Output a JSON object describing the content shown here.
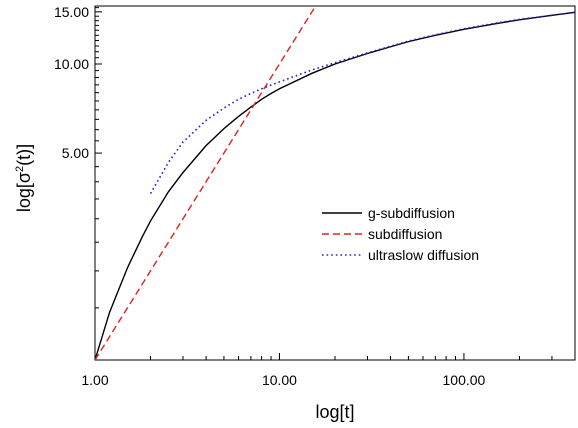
{
  "chart_data": {
    "type": "line",
    "title": "",
    "xlabel": "log[t]",
    "ylabel": {
      "prefix": "log[",
      "symbol": "σ",
      "superscript": "2",
      "suffix": "(t)]"
    },
    "x_scale": "log",
    "y_scale": "log",
    "xlim": [
      1.0,
      400.0
    ],
    "ylim": [
      1.0,
      15.7
    ],
    "x_major_ticks": [
      {
        "value": 1,
        "label": "1.00"
      },
      {
        "value": 10,
        "label": "10.00"
      },
      {
        "value": 100,
        "label": "100.00"
      }
    ],
    "y_major_ticks": [
      {
        "value": 5,
        "label": "5.00"
      },
      {
        "value": 10,
        "label": "10.00"
      },
      {
        "value": 15,
        "label": "15.00"
      }
    ],
    "y_minor_ticks": [
      1.5,
      2,
      2.5,
      3,
      3.5,
      4,
      4.5,
      5.5,
      6,
      6.5,
      7,
      7.5,
      8,
      8.5,
      9,
      9.5,
      10.5,
      11,
      11.5,
      12,
      12.5,
      13,
      13.5,
      14,
      14.5,
      15.5
    ],
    "x_minor_ticks": [
      2,
      3,
      4,
      5,
      6,
      7,
      8,
      9,
      20,
      30,
      40,
      50,
      60,
      70,
      80,
      90,
      200,
      300,
      400
    ],
    "grid": false,
    "legend_position": "center-right",
    "series": [
      {
        "name": "g-subdiffusion",
        "color": "#000000",
        "dash": "solid",
        "x": [
          1.0,
          1.2,
          1.5,
          1.8,
          2.0,
          2.5,
          3.0,
          4.0,
          5.0,
          6.0,
          7.0,
          8.0,
          9.0,
          10.0,
          15.0,
          20.0,
          30.0,
          50.0,
          70.0,
          100.0,
          150.0,
          200.0,
          300.0,
          400.0
        ],
        "y": [
          1.0,
          1.45,
          2.05,
          2.6,
          2.95,
          3.7,
          4.3,
          5.3,
          6.05,
          6.65,
          7.15,
          7.6,
          7.95,
          8.25,
          9.3,
          10.0,
          10.85,
          11.9,
          12.5,
          13.1,
          13.7,
          14.1,
          14.6,
          14.95
        ]
      },
      {
        "name": "subdiffusion",
        "color": "#e02020",
        "dash": "dashed",
        "x": [
          1.0,
          2.0,
          4.0,
          8.0,
          16.0,
          25.0
        ],
        "y": [
          1.0,
          2.0,
          4.0,
          8.0,
          16.0,
          25.0
        ]
      },
      {
        "name": "ultraslow diffusion",
        "color": "#2020d0",
        "dash": "dotted",
        "x": [
          2.0,
          2.5,
          3.0,
          4.0,
          5.0,
          6.0,
          7.0,
          8.0,
          10.0,
          15.0,
          20.0,
          30.0,
          50.0,
          70.0,
          100.0,
          150.0,
          200.0,
          300.0,
          400.0
        ],
        "y": [
          3.65,
          4.65,
          5.45,
          6.45,
          7.1,
          7.6,
          7.95,
          8.25,
          8.7,
          9.55,
          10.1,
          10.9,
          11.95,
          12.55,
          13.15,
          13.75,
          14.15,
          14.6,
          14.95
        ]
      }
    ]
  }
}
